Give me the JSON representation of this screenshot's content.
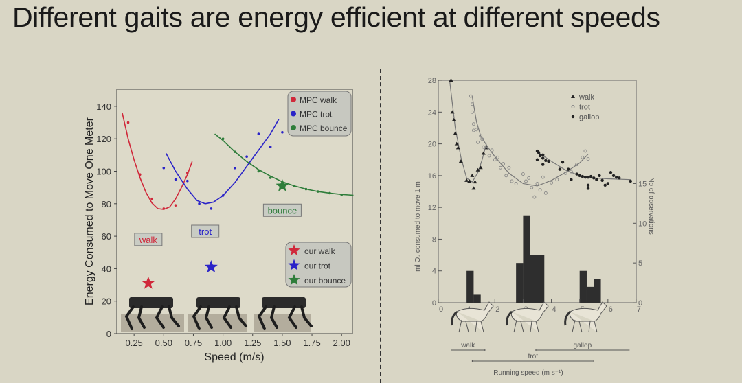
{
  "title": "Different gaits are energy efficient at different speeds",
  "chart_data": [
    {
      "type": "scatter",
      "xlabel": "Speed (m/s)",
      "ylabel": "Energy Consumed to Move One Meter",
      "xlim": [
        0,
        2.1
      ],
      "ylim": [
        0,
        150
      ],
      "xticks": [
        "0.25",
        "0.50",
        "0.75",
        "1.00",
        "1.25",
        "1.50",
        "1.75",
        "2.00"
      ],
      "yticks": [
        "0",
        "20",
        "40",
        "60",
        "80",
        "100",
        "120",
        "140"
      ],
      "series": [
        {
          "name": "MPC walk",
          "color": "#d0283a",
          "points": [
            [
              0.2,
              130
            ],
            [
              0.3,
              98
            ],
            [
              0.4,
              83
            ],
            [
              0.5,
              77
            ],
            [
              0.6,
              79
            ],
            [
              0.7,
              99
            ]
          ],
          "fit": [
            [
              0.15,
              136
            ],
            [
              0.2,
              120
            ],
            [
              0.25,
              107
            ],
            [
              0.3,
              96
            ],
            [
              0.35,
              87
            ],
            [
              0.4,
              80.5
            ],
            [
              0.45,
              77
            ],
            [
              0.5,
              76.5
            ],
            [
              0.55,
              78
            ],
            [
              0.6,
              83
            ],
            [
              0.65,
              90
            ],
            [
              0.7,
              98
            ],
            [
              0.74,
              106
            ]
          ]
        },
        {
          "name": "MPC trot",
          "color": "#2a23c8",
          "points": [
            [
              0.5,
              102
            ],
            [
              0.6,
              95
            ],
            [
              0.7,
              94
            ],
            [
              0.8,
              80
            ],
            [
              0.9,
              77
            ],
            [
              1.0,
              85
            ],
            [
              1.1,
              102
            ],
            [
              1.2,
              109
            ],
            [
              1.3,
              123
            ],
            [
              1.4,
              115
            ],
            [
              1.5,
              124
            ]
          ],
          "fit": [
            [
              0.52,
              111
            ],
            [
              0.6,
              100
            ],
            [
              0.7,
              89
            ],
            [
              0.78,
              82
            ],
            [
              0.85,
              80
            ],
            [
              0.92,
              81
            ],
            [
              1.0,
              85
            ],
            [
              1.1,
              93
            ],
            [
              1.2,
              103
            ],
            [
              1.3,
              113
            ],
            [
              1.4,
              123
            ],
            [
              1.47,
              132
            ]
          ]
        },
        {
          "name": "MPC bounce",
          "color": "#2e7d3a",
          "points": [
            [
              1.0,
              120
            ],
            [
              1.1,
              112
            ],
            [
              1.3,
              100
            ],
            [
              1.4,
              96
            ],
            [
              1.6,
              91
            ],
            [
              1.7,
              89
            ],
            [
              1.8,
              87.5
            ],
            [
              1.9,
              86.5
            ],
            [
              2.0,
              85.5
            ]
          ],
          "fit": [
            [
              0.93,
              123
            ],
            [
              1.0,
              119
            ],
            [
              1.1,
              112
            ],
            [
              1.2,
              106
            ],
            [
              1.3,
              101
            ],
            [
              1.4,
              97
            ],
            [
              1.5,
              93.5
            ],
            [
              1.6,
              91
            ],
            [
              1.7,
              89
            ],
            [
              1.8,
              87.5
            ],
            [
              1.9,
              86.5
            ],
            [
              2.0,
              85.7
            ],
            [
              2.1,
              85.2
            ]
          ]
        }
      ],
      "stars": [
        {
          "name": "our walk",
          "color": "#d0283a",
          "x": 0.37,
          "y": 31
        },
        {
          "name": "our trot",
          "color": "#2a23c8",
          "x": 0.9,
          "y": 41
        },
        {
          "name": "our bounce",
          "color": "#2e7d3a",
          "x": 1.5,
          "y": 91
        }
      ],
      "annotations": [
        {
          "text": "walk",
          "color": "#d0283a",
          "x": 0.37,
          "y": 58
        },
        {
          "text": "trot",
          "color": "#2a23c8",
          "x": 0.85,
          "y": 63
        },
        {
          "text": "bounce",
          "color": "#2e7d3a",
          "x": 1.5,
          "y": 76
        }
      ],
      "legend_position": "top-right"
    },
    {
      "type": "scatter",
      "xlabel": "Running speed   (m s⁻¹)",
      "ylabel": "ml O₂ consumed to move 1 m",
      "ylabel_right": "No of observations",
      "xlim": [
        0,
        7
      ],
      "ylim": [
        0,
        28
      ],
      "xticks": [
        "0",
        "1",
        "2",
        "3",
        "4",
        "5",
        "6",
        "7"
      ],
      "yticks": [
        "0",
        "4",
        "8",
        "12",
        "16",
        "20",
        "24",
        "28"
      ],
      "yticks_right": [
        "0",
        "5",
        "10",
        "15"
      ],
      "series": [
        {
          "name": "walk",
          "marker": "triangle",
          "points": [
            [
              0.45,
              28
            ],
            [
              0.5,
              24
            ],
            [
              0.55,
              23
            ],
            [
              0.6,
              21.3
            ],
            [
              0.65,
              20
            ],
            [
              0.7,
              19.5
            ],
            [
              0.8,
              17.8
            ],
            [
              1.0,
              15.4
            ],
            [
              1.1,
              15.3
            ],
            [
              1.2,
              16
            ],
            [
              1.25,
              14.4
            ],
            [
              1.3,
              15.2
            ],
            [
              1.4,
              16.7
            ],
            [
              1.5,
              17
            ],
            [
              1.6,
              18.8
            ],
            [
              1.7,
              19.5
            ]
          ],
          "fit": [
            [
              0.4,
              28
            ],
            [
              0.5,
              25
            ],
            [
              0.6,
              22
            ],
            [
              0.8,
              18.3
            ],
            [
              1.0,
              15.7
            ],
            [
              1.2,
              15.2
            ],
            [
              1.4,
              16.4
            ],
            [
              1.55,
              18
            ],
            [
              1.7,
              20
            ]
          ]
        },
        {
          "name": "trot",
          "marker": "open-circle",
          "points": [
            [
              1.15,
              26
            ],
            [
              1.2,
              25
            ],
            [
              1.2,
              24
            ],
            [
              1.25,
              22.5
            ],
            [
              1.25,
              21.7
            ],
            [
              1.35,
              21.8
            ],
            [
              1.5,
              21
            ],
            [
              1.55,
              20.6
            ],
            [
              1.4,
              20.2
            ],
            [
              1.6,
              19.6
            ],
            [
              1.7,
              19.4
            ],
            [
              1.8,
              18.5
            ],
            [
              1.9,
              19.2
            ],
            [
              2.0,
              18
            ],
            [
              2.1,
              18.3
            ],
            [
              2.2,
              17
            ],
            [
              2.3,
              17.5
            ],
            [
              2.4,
              16
            ],
            [
              2.5,
              17
            ],
            [
              2.6,
              15.3
            ],
            [
              2.75,
              15
            ],
            [
              3.0,
              16.2
            ],
            [
              3.1,
              15.3
            ],
            [
              3.2,
              15.7
            ],
            [
              3.3,
              14.5
            ],
            [
              3.4,
              13.3
            ],
            [
              3.5,
              15
            ],
            [
              3.6,
              14.2
            ],
            [
              3.7,
              15.8
            ],
            [
              3.8,
              13.8
            ],
            [
              4.0,
              15.1
            ],
            [
              4.2,
              15.5
            ],
            [
              4.5,
              16.3
            ],
            [
              4.7,
              16.5
            ],
            [
              4.9,
              17.4
            ],
            [
              5.1,
              18.3
            ],
            [
              5.2,
              19.1
            ],
            [
              5.3,
              18.1
            ]
          ],
          "fit": [
            [
              1.2,
              26
            ],
            [
              1.35,
              22.8
            ],
            [
              1.5,
              21
            ],
            [
              1.75,
              19.6
            ],
            [
              2.0,
              18.4
            ],
            [
              2.5,
              16.3
            ],
            [
              3.0,
              15
            ],
            [
              3.5,
              14.7
            ],
            [
              4.0,
              15.4
            ],
            [
              4.5,
              16.4
            ],
            [
              5.0,
              17.6
            ],
            [
              5.3,
              18.7
            ]
          ]
        },
        {
          "name": "gallop",
          "marker": "filled-circle",
          "points": [
            [
              3.5,
              19.1
            ],
            [
              3.55,
              18.9
            ],
            [
              3.6,
              18.5
            ],
            [
              3.5,
              18
            ],
            [
              3.7,
              18.6
            ],
            [
              3.7,
              18.2
            ],
            [
              3.8,
              17.9
            ],
            [
              3.7,
              17.4
            ],
            [
              3.9,
              17.8
            ],
            [
              4.3,
              16.8
            ],
            [
              4.4,
              17.7
            ],
            [
              4.6,
              16.8
            ],
            [
              4.7,
              15.5
            ],
            [
              4.9,
              16.2
            ],
            [
              5.0,
              16
            ],
            [
              5.1,
              15.9
            ],
            [
              5.2,
              15.8
            ],
            [
              5.3,
              15.8
            ],
            [
              5.4,
              15.9
            ],
            [
              5.3,
              14.8
            ],
            [
              5.3,
              14.4
            ],
            [
              5.5,
              15.7
            ],
            [
              5.6,
              15.5
            ],
            [
              5.7,
              16
            ],
            [
              5.8,
              15.4
            ],
            [
              5.9,
              14.8
            ],
            [
              6.0,
              15
            ],
            [
              6.1,
              16.4
            ],
            [
              6.2,
              16
            ],
            [
              6.3,
              15.8
            ],
            [
              6.4,
              15.7
            ],
            [
              6.8,
              15.3
            ]
          ],
          "fit": [
            [
              3.5,
              19
            ],
            [
              4.0,
              17.8
            ],
            [
              4.5,
              16.7
            ],
            [
              5.0,
              16
            ],
            [
              5.5,
              15.7
            ],
            [
              6.0,
              15.6
            ],
            [
              6.8,
              15.5
            ]
          ]
        }
      ],
      "histogram": [
        [
          1.0,
          1.25,
          4
        ],
        [
          1.25,
          1.5,
          1
        ],
        [
          2.75,
          3.0,
          5
        ],
        [
          3.0,
          3.25,
          11
        ],
        [
          3.25,
          3.75,
          6
        ],
        [
          5.0,
          5.25,
          4
        ],
        [
          5.25,
          5.5,
          2
        ],
        [
          5.5,
          5.75,
          3
        ]
      ],
      "gait_ranges": [
        {
          "name": "walk",
          "from": 0.45,
          "to": 1.65
        },
        {
          "name": "trot",
          "from": 1.2,
          "to": 5.5
        },
        {
          "name": "gallop",
          "from": 3.45,
          "to": 6.75
        }
      ],
      "legend_position": "top-right"
    }
  ]
}
